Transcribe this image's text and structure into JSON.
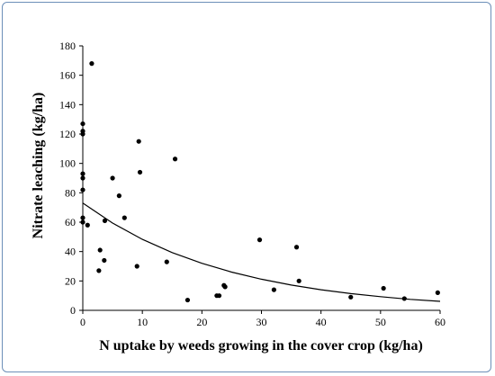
{
  "chart_data": {
    "type": "scatter",
    "title": "",
    "xlabel": "N uptake by weeds growing in the cover crop (kg/ha)",
    "ylabel": "Nitrate leaching (kg/ha)",
    "xlim": [
      0,
      60
    ],
    "ylim": [
      0,
      180
    ],
    "x_ticks": [
      0,
      10,
      20,
      30,
      40,
      50,
      60
    ],
    "y_ticks": [
      0,
      20,
      40,
      60,
      80,
      100,
      120,
      140,
      160,
      180
    ],
    "grid": false,
    "legend": "none",
    "points": [
      {
        "x": 0.0,
        "y": 127
      },
      {
        "x": 0.0,
        "y": 122
      },
      {
        "x": 0.0,
        "y": 120
      },
      {
        "x": 0.0,
        "y": 93
      },
      {
        "x": 0.0,
        "y": 90
      },
      {
        "x": 0.0,
        "y": 82
      },
      {
        "x": 0.0,
        "y": 63
      },
      {
        "x": 0.0,
        "y": 60
      },
      {
        "x": 0.8,
        "y": 58
      },
      {
        "x": 1.5,
        "y": 168
      },
      {
        "x": 2.7,
        "y": 27
      },
      {
        "x": 2.9,
        "y": 41
      },
      {
        "x": 3.6,
        "y": 34
      },
      {
        "x": 3.7,
        "y": 61
      },
      {
        "x": 5.0,
        "y": 90
      },
      {
        "x": 6.1,
        "y": 78
      },
      {
        "x": 7.0,
        "y": 63
      },
      {
        "x": 9.1,
        "y": 30
      },
      {
        "x": 9.4,
        "y": 115
      },
      {
        "x": 9.6,
        "y": 94
      },
      {
        "x": 14.1,
        "y": 33
      },
      {
        "x": 15.5,
        "y": 103
      },
      {
        "x": 17.6,
        "y": 7
      },
      {
        "x": 22.5,
        "y": 10
      },
      {
        "x": 22.9,
        "y": 10
      },
      {
        "x": 23.7,
        "y": 17
      },
      {
        "x": 23.9,
        "y": 16
      },
      {
        "x": 29.7,
        "y": 48
      },
      {
        "x": 32.1,
        "y": 14
      },
      {
        "x": 35.9,
        "y": 43
      },
      {
        "x": 36.3,
        "y": 20
      },
      {
        "x": 45.0,
        "y": 9
      },
      {
        "x": 50.5,
        "y": 15
      },
      {
        "x": 54.0,
        "y": 8
      },
      {
        "x": 59.6,
        "y": 12
      }
    ],
    "trendline": {
      "type": "exponential",
      "x": [
        0,
        5,
        10,
        15,
        20,
        25,
        30,
        35,
        40,
        45,
        50,
        55,
        60
      ],
      "y": [
        73,
        59.4,
        48.3,
        39.3,
        32.0,
        26.0,
        21.2,
        17.2,
        14.0,
        11.4,
        9.3,
        7.5,
        6.1
      ]
    },
    "colors": {
      "points": "#000000",
      "trendline": "#000000",
      "axes": "#000000",
      "frame": "#6d8fb8"
    }
  }
}
